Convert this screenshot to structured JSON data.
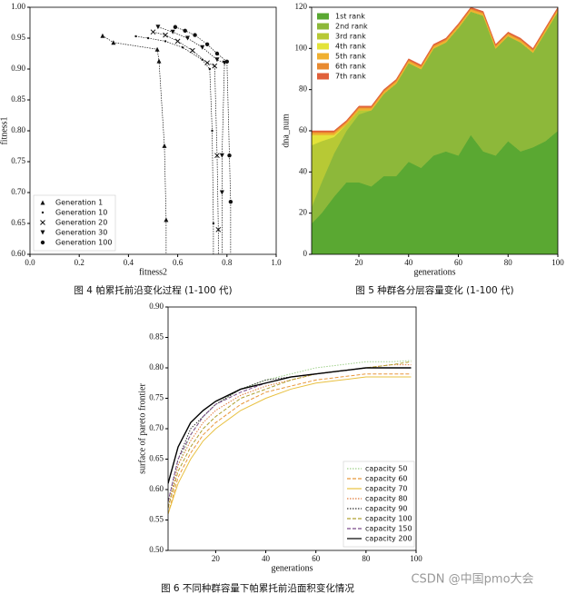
{
  "chart_data": [
    {
      "type": "scatter",
      "caption": "图 4  帕累托前沿变化过程 (1-100 代)",
      "x_label": "fitness2",
      "y_label": "fitness1",
      "xlim": [
        0,
        1
      ],
      "ylim": [
        0.6,
        1.0
      ],
      "xticks": [
        {
          "value": 0,
          "label": "0.0"
        },
        0.2,
        0.4,
        0.6,
        0.8,
        {
          "value": 1,
          "label": "1.0"
        }
      ],
      "yticks": [
        {
          "value": 0.6,
          "label": "0.60"
        },
        0.65,
        {
          "value": 0.7,
          "label": "0.70"
        },
        0.75,
        {
          "value": 0.8,
          "label": "0.80"
        },
        0.85,
        {
          "value": 0.9,
          "label": "0.90"
        },
        0.95,
        {
          "value": 1,
          "label": "1.00"
        }
      ],
      "legend": "lower left",
      "series": [
        {
          "name": "Generation 1",
          "marker": "triangle-up",
          "color": "#111111",
          "x": [
            0.295,
            0.339,
            0.517,
            0.524,
            0.546,
            0.553
          ],
          "values": [
            0.954,
            0.943,
            0.932,
            0.913,
            0.776,
            0.656
          ]
        },
        {
          "name": "Generation 10",
          "marker": "dot",
          "color": "#111111",
          "x": [
            0.43,
            0.48,
            0.55,
            0.62,
            0.7,
            0.73,
            0.74,
            0.745
          ],
          "values": [
            0.953,
            0.95,
            0.945,
            0.935,
            0.915,
            0.9,
            0.8,
            0.65
          ]
        },
        {
          "name": "Generation 20",
          "marker": "x",
          "color": "#111111",
          "x": [
            0.5,
            0.55,
            0.6,
            0.66,
            0.72,
            0.75,
            0.76,
            0.765
          ],
          "values": [
            0.96,
            0.955,
            0.945,
            0.93,
            0.91,
            0.905,
            0.76,
            0.64
          ]
        },
        {
          "name": "Generation 30",
          "marker": "triangle-down",
          "color": "#111111",
          "x": [
            0.52,
            0.58,
            0.64,
            0.7,
            0.76,
            0.79,
            0.78,
            0.78
          ],
          "values": [
            0.968,
            0.96,
            0.95,
            0.935,
            0.915,
            0.91,
            0.76,
            0.7
          ]
        },
        {
          "name": "Generation 100",
          "marker": "circle",
          "color": "#111111",
          "x": [
            0.59,
            0.63,
            0.67,
            0.72,
            0.76,
            0.8,
            0.81,
            0.815
          ],
          "values": [
            0.968,
            0.962,
            0.955,
            0.94,
            0.925,
            0.912,
            0.76,
            0.685
          ]
        }
      ]
    },
    {
      "type": "stacked-area",
      "caption": "图 5  种群各分层容量变化 (1-100 代)",
      "x_label": "generations",
      "y_label": "dna_num",
      "xlim": [
        1,
        100
      ],
      "ylim": [
        0,
        120
      ],
      "xticks": [
        20,
        40,
        60,
        80,
        100
      ],
      "yticks": [
        0,
        20,
        40,
        60,
        80,
        100,
        120
      ],
      "legend": "upper left",
      "x": [
        1,
        5,
        10,
        15,
        20,
        25,
        30,
        35,
        40,
        45,
        50,
        55,
        60,
        65,
        70,
        75,
        80,
        85,
        90,
        95,
        100
      ],
      "series": [
        {
          "name": "1st rank",
          "color": "#5aa832",
          "values": [
            15,
            20,
            28,
            35,
            35,
            33,
            38,
            38,
            45,
            42,
            48,
            50,
            48,
            58,
            50,
            48,
            55,
            50,
            52,
            55,
            60
          ]
        },
        {
          "name": "2nd rank",
          "color": "#8db83a",
          "values": [
            8,
            15,
            21,
            25,
            33,
            37,
            40,
            45,
            48,
            48,
            52,
            53,
            62,
            60,
            66,
            52,
            51,
            53,
            46,
            53,
            58
          ]
        },
        {
          "name": "3rd rank",
          "color": "#b7c935",
          "values": [
            30,
            20,
            8,
            3,
            2,
            0,
            0,
            0,
            0,
            0,
            0,
            0,
            0,
            0,
            0,
            0,
            0,
            0,
            0,
            0,
            0
          ]
        },
        {
          "name": "4th rank",
          "color": "#e3e33a",
          "values": [
            5,
            3,
            1,
            0,
            0,
            0,
            0,
            0,
            0,
            0,
            0,
            0,
            0,
            0,
            0,
            0,
            0,
            0,
            0,
            0,
            0
          ]
        },
        {
          "name": "5th rank",
          "color": "#f0b030",
          "values": [
            1,
            1,
            1,
            1,
            1,
            1,
            1,
            1,
            1,
            1,
            1,
            1,
            1,
            1,
            1,
            1,
            1,
            1,
            1,
            1,
            1
          ]
        },
        {
          "name": "6th rank",
          "color": "#e88a30",
          "values": [
            0.5,
            0.5,
            0.5,
            0.5,
            0.5,
            0.5,
            0.5,
            0.5,
            0.5,
            0.5,
            0.5,
            0.5,
            0.5,
            0.5,
            0.5,
            0.5,
            0.5,
            0.5,
            0.5,
            0.5,
            0.5
          ]
        },
        {
          "name": "7th rank",
          "color": "#e0603a",
          "values": [
            0.5,
            0.5,
            0.5,
            0.5,
            0.5,
            0.5,
            0.5,
            0.5,
            0.5,
            0.5,
            0.5,
            0.5,
            0.5,
            0.5,
            0.5,
            0.5,
            0.5,
            0.5,
            0.5,
            0.5,
            0.5
          ]
        }
      ]
    },
    {
      "type": "line",
      "caption": "图 6  不同种群容量下帕累托前沿面积变化情况",
      "x_label": "generations",
      "y_label": "surface of pareto frontier",
      "xlim": [
        1,
        100
      ],
      "ylim": [
        0.5,
        0.9
      ],
      "xticks": [
        20,
        40,
        60,
        80,
        100
      ],
      "yticks": [
        {
          "value": 0.5,
          "label": "0.50"
        },
        0.55,
        {
          "value": 0.6,
          "label": "0.60"
        },
        0.65,
        {
          "value": 0.7,
          "label": "0.70"
        },
        0.75,
        {
          "value": 0.8,
          "label": "0.80"
        },
        0.85,
        {
          "value": 0.9,
          "label": "0.90"
        }
      ],
      "legend": "lower right",
      "x": [
        1,
        5,
        10,
        15,
        20,
        30,
        40,
        50,
        60,
        70,
        80,
        90,
        98
      ],
      "series": [
        {
          "name": "capacity 50",
          "color": "#9fd08a",
          "style": "dotted",
          "values": [
            0.57,
            0.64,
            0.69,
            0.72,
            0.74,
            0.765,
            0.78,
            0.79,
            0.8,
            0.805,
            0.81,
            0.81,
            0.812
          ]
        },
        {
          "name": "capacity 60",
          "color": "#e8963a",
          "style": "dashed",
          "values": [
            0.56,
            0.62,
            0.66,
            0.69,
            0.71,
            0.74,
            0.76,
            0.77,
            0.78,
            0.785,
            0.79,
            0.79,
            0.79
          ]
        },
        {
          "name": "capacity 70",
          "color": "#e8c040",
          "style": "solid",
          "values": [
            0.56,
            0.61,
            0.65,
            0.68,
            0.7,
            0.73,
            0.75,
            0.765,
            0.775,
            0.78,
            0.785,
            0.785,
            0.785
          ]
        },
        {
          "name": "capacity 80",
          "color": "#e07a3a",
          "style": "dotted",
          "values": [
            0.57,
            0.64,
            0.68,
            0.71,
            0.73,
            0.755,
            0.77,
            0.78,
            0.79,
            0.795,
            0.8,
            0.805,
            0.805
          ]
        },
        {
          "name": "capacity 90",
          "color": "#333333",
          "style": "dotted",
          "values": [
            0.58,
            0.65,
            0.7,
            0.72,
            0.74,
            0.765,
            0.78,
            0.785,
            0.79,
            0.795,
            0.8,
            0.8,
            0.8
          ]
        },
        {
          "name": "capacity 100",
          "color": "#b0a030",
          "style": "dashed",
          "values": [
            0.57,
            0.63,
            0.67,
            0.7,
            0.72,
            0.75,
            0.765,
            0.78,
            0.79,
            0.795,
            0.8,
            0.805,
            0.81
          ]
        },
        {
          "name": "capacity 150",
          "color": "#7a4a8a",
          "style": "dashed",
          "values": [
            0.58,
            0.65,
            0.69,
            0.72,
            0.74,
            0.76,
            0.775,
            0.785,
            0.79,
            0.795,
            0.8,
            0.8,
            0.8
          ]
        },
        {
          "name": "capacity 200",
          "color": "#000000",
          "style": "solid",
          "values": [
            0.61,
            0.67,
            0.71,
            0.73,
            0.745,
            0.765,
            0.775,
            0.785,
            0.79,
            0.795,
            0.8,
            0.8,
            0.8
          ]
        }
      ]
    }
  ],
  "watermark": "CSDN @中国pmo大会"
}
